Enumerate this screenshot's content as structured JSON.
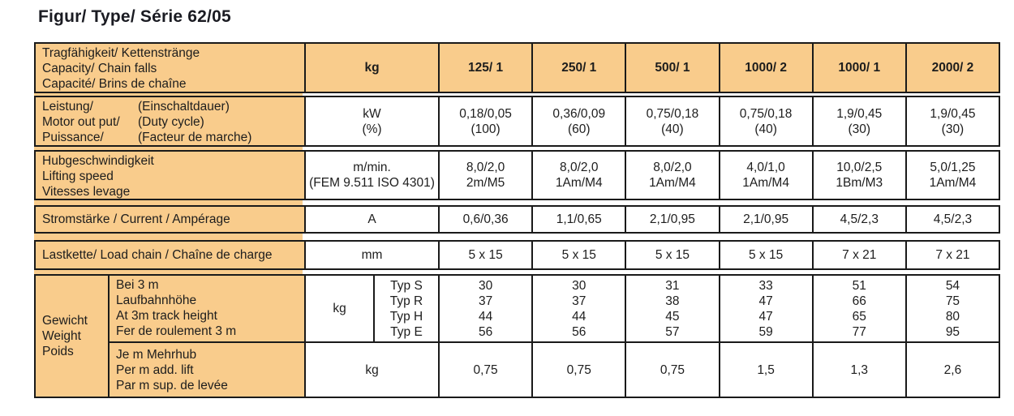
{
  "title": "Figur/ Type/ Série  62/05",
  "colors": {
    "orange": "#f9cc8c",
    "border": "#1a1a1a"
  },
  "table": {
    "header": {
      "label_lines": [
        "Tragfähigkeit/ Kettenstränge",
        "Capacity/ Chain falls",
        "Capacité/ Brins de chaîne"
      ],
      "unit": "kg",
      "columns": [
        "125/ 1",
        "250/ 1",
        "500/ 1",
        "1000/ 2",
        "1000/ 1",
        "2000/ 2"
      ]
    },
    "power": {
      "pairs": [
        [
          "Leistung/",
          "(Einschaltdauer)"
        ],
        [
          "Motor out put/",
          "(Duty cycle)"
        ],
        [
          "Puissance/",
          "(Facteur de marche)"
        ]
      ],
      "unit_lines": [
        "kW",
        "(%)"
      ],
      "values": [
        [
          "0,18/0,05",
          "(100)"
        ],
        [
          "0,36/0,09",
          "(60)"
        ],
        [
          "0,75/0,18",
          "(40)"
        ],
        [
          "0,75/0,18",
          "(40)"
        ],
        [
          "1,9/0,45",
          "(30)"
        ],
        [
          "1,9/0,45",
          "(30)"
        ]
      ]
    },
    "speed": {
      "label_lines": [
        "Hubgeschwindigkeit",
        "Lifting speed",
        "Vitesses levage"
      ],
      "unit_lines": [
        "m/min.",
        "(FEM 9.511 ISO 4301)"
      ],
      "values": [
        [
          "8,0/2,0",
          "2m/M5"
        ],
        [
          "8,0/2,0",
          "1Am/M4"
        ],
        [
          "8,0/2,0",
          "1Am/M4"
        ],
        [
          "4,0/1,0",
          "1Am/M4"
        ],
        [
          "10,0/2,5",
          "1Bm/M3"
        ],
        [
          "5,0/1,25",
          "1Am/M4"
        ]
      ]
    },
    "current": {
      "label": "Stromstärke / Current / Ampérage",
      "unit": "A",
      "values": [
        "0,6/0,36",
        "1,1/0,65",
        "2,1/0,95",
        "2,1/0,95",
        "4,5/2,3",
        "4,5/2,3"
      ]
    },
    "chain": {
      "label": "Lastkette/ Load chain / Chaîne de charge",
      "unit": "mm",
      "values": [
        "5 x 15",
        "5 x 15",
        "5 x 15",
        "5 x 15",
        "7 x 21",
        "7 x 21"
      ]
    },
    "weight": {
      "group_lines": [
        "Gewicht",
        "Weight",
        "Poids"
      ],
      "row_a": {
        "label_lines": [
          "Bei 3 m",
          "Laufbahnhöhe",
          "At 3m track height",
          "Fer de roulement 3 m"
        ],
        "unit": "kg",
        "typ_labels": [
          "Typ S",
          "Typ R",
          "Typ H",
          "Typ E"
        ],
        "cols": [
          [
            "30",
            "37",
            "44",
            "56"
          ],
          [
            "30",
            "37",
            "44",
            "56"
          ],
          [
            "31",
            "38",
            "45",
            "57"
          ],
          [
            "33",
            "47",
            "47",
            "59"
          ],
          [
            "51",
            "66",
            "65",
            "77"
          ],
          [
            "54",
            "75",
            "80",
            "95"
          ]
        ]
      },
      "row_b": {
        "label_lines": [
          "Je m Mehrhub",
          "Per m add. lift",
          "Par m sup. de levée"
        ],
        "unit": "kg",
        "values": [
          "0,75",
          "0,75",
          "0,75",
          "1,5",
          "1,3",
          "2,6"
        ]
      }
    }
  }
}
